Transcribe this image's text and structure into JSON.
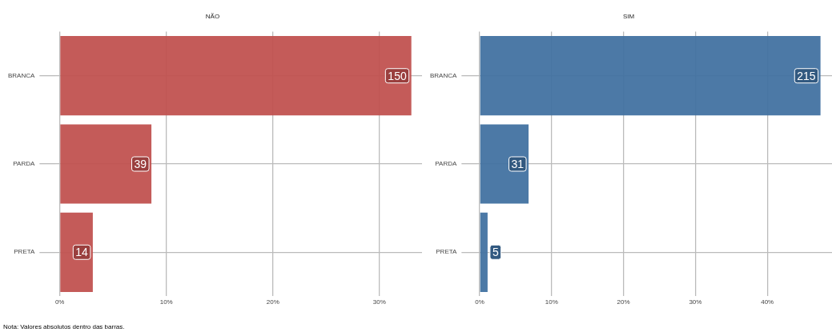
{
  "chart_data": [
    {
      "type": "bar",
      "orientation": "horizontal",
      "title": "NÃO",
      "categories": [
        "BRANCA",
        "PARDA",
        "PRETA"
      ],
      "series": [
        {
          "color": "#c04f4d",
          "values": [
            33.0,
            8.6,
            3.1
          ]
        }
      ],
      "xlim": [
        -0.4,
        34
      ],
      "xticks": [
        {
          "value": 0,
          "label": "0%"
        },
        {
          "value": 10,
          "label": "10%"
        },
        {
          "value": 20,
          "label": "20%"
        },
        {
          "value": 30,
          "label": "30%"
        }
      ],
      "grid": true,
      "legend": false,
      "annotations": [
        {
          "text": "150",
          "x": 33.0,
          "y": "BRANCA"
        },
        {
          "text": "39",
          "x": 8.6,
          "y": "PARDA"
        },
        {
          "text": "14",
          "x": 3.1,
          "y": "PRETA"
        },
        "Nota: Valores absolutos dentro das barras."
      ]
    },
    {
      "type": "bar",
      "orientation": "horizontal",
      "title": "SIM",
      "categories": [
        "BRANCA",
        "PARDA",
        "PRETA"
      ],
      "series": [
        {
          "color": "#3f6fa0",
          "values": [
            47.4,
            6.8,
            1.1
          ]
        }
      ],
      "xlim": [
        -0.3,
        49
      ],
      "xticks": [
        {
          "value": 0,
          "label": "0%"
        },
        {
          "value": 10,
          "label": "10%"
        },
        {
          "value": 20,
          "label": "20%"
        },
        {
          "value": 30,
          "label": "30%"
        },
        {
          "value": 40,
          "label": "40%"
        }
      ],
      "grid": true,
      "legend": false,
      "annotations": [
        {
          "text": "215",
          "x": 47.4,
          "y": "BRANCA"
        },
        {
          "text": "31",
          "x": 6.8,
          "y": "PARDA"
        },
        {
          "text": "5",
          "x": 1.1,
          "y": "PRETA"
        }
      ]
    }
  ]
}
